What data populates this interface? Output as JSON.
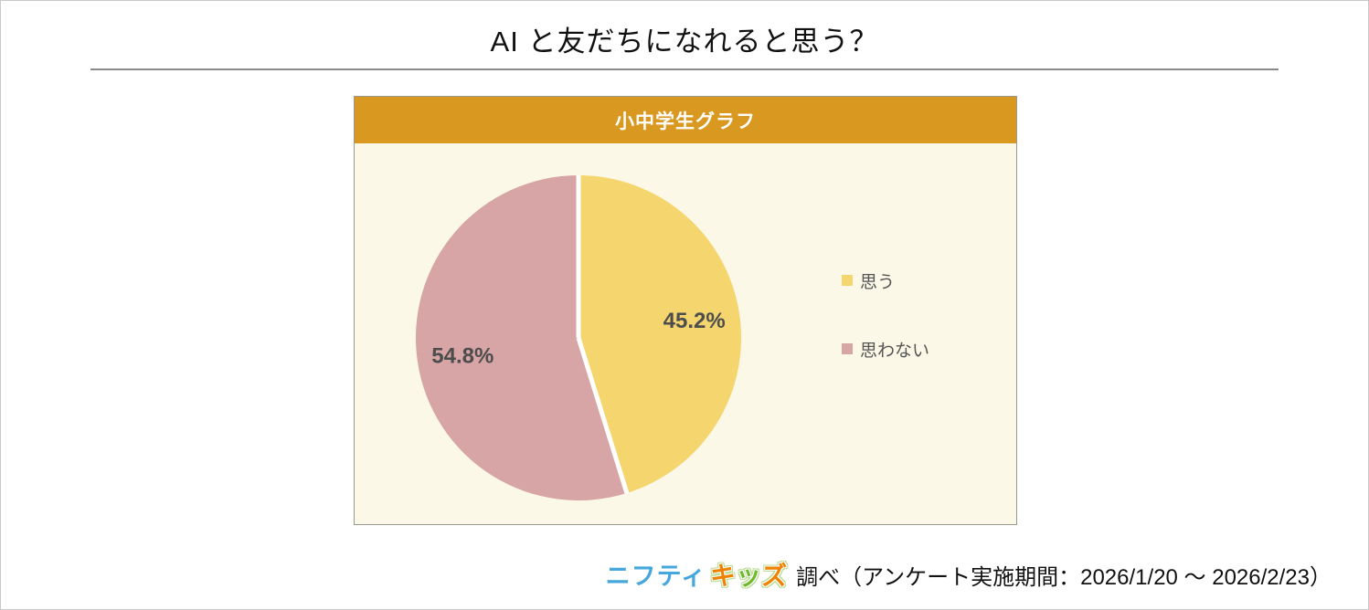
{
  "title": "AI と友だちになれると思う？",
  "card": {
    "header_title": "小中学生グラフ"
  },
  "chart_data": {
    "type": "pie",
    "title": "小中学生グラフ",
    "start_angle": "top",
    "direction": "clockwise",
    "slices": [
      {
        "label": "思う",
        "value": 45.2,
        "display": "45.2%",
        "color": "#f5d56e"
      },
      {
        "label": "思わない",
        "value": 54.8,
        "display": "54.8%",
        "color": "#d7a5a5"
      }
    ],
    "legend_position": "right",
    "slice_separator_color": "#ffffff",
    "value_label_color": "#4d4d4d"
  },
  "footer": {
    "logo_nifty": "ニフティ",
    "logo_kids_chars": [
      {
        "char": "キ",
        "color": "#ef8200"
      },
      {
        "char": "ッ",
        "color": "#6fba2c"
      },
      {
        "char": "ズ",
        "color": "#ef8200"
      }
    ],
    "survey_text": "調べ（アンケート実施期間：2026/1/20 ～ 2026/2/23）"
  },
  "colors": {
    "header_bg": "#d9981f",
    "card_bg": "#fbf8e7",
    "divider": "#8a8a8a",
    "legend_text": "#555555",
    "logo_blue": "#46a7dc"
  }
}
